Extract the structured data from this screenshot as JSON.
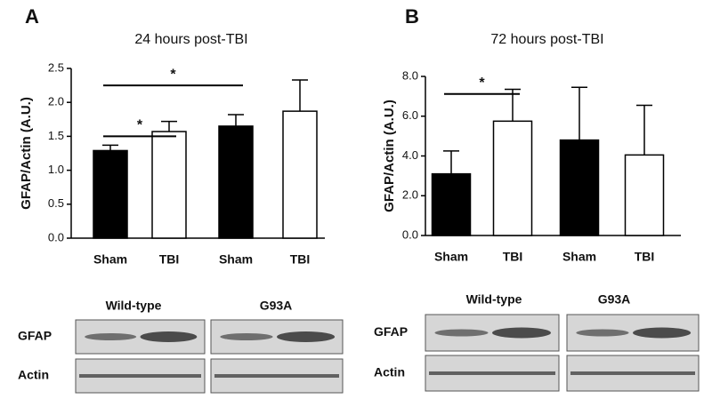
{
  "chart_data": [
    {
      "type": "bar",
      "panel": "A",
      "title": "24 hours post-TBI",
      "y_label": "GFAP/Actin (A.U.)",
      "categories": [
        "Sham",
        "TBI",
        "Sham",
        "TBI"
      ],
      "values": [
        1.29,
        1.57,
        1.65,
        1.87
      ],
      "errors": [
        0.08,
        0.15,
        0.17,
        0.46
      ],
      "colors": [
        "#000000",
        "#ffffff",
        "#000000",
        "#ffffff"
      ],
      "ylim": [
        0,
        2.5
      ],
      "yticks": [
        {
          "value": 0,
          "label": "0.0"
        },
        0.5,
        {
          "value": 1,
          "label": "1.0"
        },
        1.5,
        {
          "value": 2,
          "label": "2.0"
        },
        2.5
      ],
      "annotations": [
        "*",
        "*"
      ],
      "blot_groups": [
        "Wild-type",
        "G93A"
      ],
      "blot_rows": [
        "GFAP",
        "Actin"
      ]
    },
    {
      "type": "bar",
      "panel": "B",
      "title": "72 hours post-TBI",
      "y_label": "GFAP/Actin (A.U.)",
      "categories": [
        "Sham",
        "TBI",
        "Sham",
        "TBI"
      ],
      "values": [
        3.1,
        5.75,
        4.8,
        4.05
      ],
      "errors": [
        1.15,
        1.6,
        2.65,
        2.5
      ],
      "colors": [
        "#000000",
        "#ffffff",
        "#000000",
        "#ffffff"
      ],
      "ylim": [
        0,
        8
      ],
      "yticks": [
        {
          "value": 0,
          "label": "0.0"
        },
        {
          "value": 2,
          "label": "2.0"
        },
        {
          "value": 4,
          "label": "4.0"
        },
        {
          "value": 6,
          "label": "6.0"
        },
        {
          "value": 8,
          "label": "8.0"
        }
      ],
      "annotations": [
        "*"
      ],
      "blot_groups": [
        "Wild-type",
        "G93A"
      ],
      "blot_rows": [
        "GFAP",
        "Actin"
      ]
    }
  ]
}
